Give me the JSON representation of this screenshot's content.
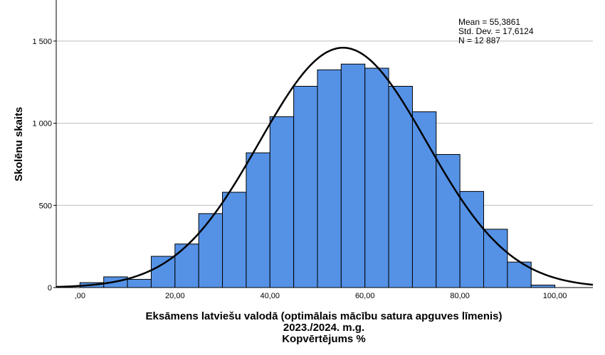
{
  "chart_data": {
    "type": "bar",
    "subtype": "histogram",
    "title": "",
    "xlabel_lines": [
      "Eksāmens latviešu valodā (optimālais mācību satura apguves līmenis)",
      "2023./2024. m.g.",
      "Kopvērtējums %"
    ],
    "ylabel": "Skolēnu skaits",
    "stats": [
      "Mean = 55,3861",
      "Std. Dev. = 17,6124",
      "N = 12 887"
    ],
    "mean": 55.3861,
    "std_dev": 17.6124,
    "n": 12887,
    "bin_width": 5,
    "bins": [
      {
        "start": 0,
        "end": 5,
        "count": 30
      },
      {
        "start": 5,
        "end": 10,
        "count": 65
      },
      {
        "start": 10,
        "end": 15,
        "count": 50
      },
      {
        "start": 15,
        "end": 20,
        "count": 190
      },
      {
        "start": 20,
        "end": 25,
        "count": 265
      },
      {
        "start": 25,
        "end": 30,
        "count": 450
      },
      {
        "start": 30,
        "end": 35,
        "count": 580
      },
      {
        "start": 35,
        "end": 40,
        "count": 820
      },
      {
        "start": 40,
        "end": 45,
        "count": 1040
      },
      {
        "start": 45,
        "end": 50,
        "count": 1225
      },
      {
        "start": 50,
        "end": 55,
        "count": 1325
      },
      {
        "start": 55,
        "end": 60,
        "count": 1360
      },
      {
        "start": 60,
        "end": 65,
        "count": 1335
      },
      {
        "start": 65,
        "end": 70,
        "count": 1225
      },
      {
        "start": 70,
        "end": 75,
        "count": 1070
      },
      {
        "start": 75,
        "end": 80,
        "count": 810
      },
      {
        "start": 80,
        "end": 85,
        "count": 585
      },
      {
        "start": 85,
        "end": 90,
        "count": 355
      },
      {
        "start": 90,
        "end": 95,
        "count": 155
      },
      {
        "start": 95,
        "end": 100,
        "count": 15
      }
    ],
    "xlim": [
      -5,
      108
    ],
    "ylim": [
      0,
      1750
    ],
    "xticks": [
      0,
      20,
      40,
      60,
      80,
      100
    ],
    "xtick_labels": [
      ",00",
      "20,00",
      "40,00",
      "60,00",
      "80,00",
      "100,00"
    ],
    "yticks": [
      0,
      500,
      1000,
      1500
    ],
    "ytick_labels": [
      "0",
      "500",
      "1 000",
      "1 500"
    ],
    "grid": "horizontal",
    "bar_color": "#5592e6",
    "bar_edge_color": "#000000",
    "curve_color": "#000000",
    "overlay": "normal curve"
  }
}
